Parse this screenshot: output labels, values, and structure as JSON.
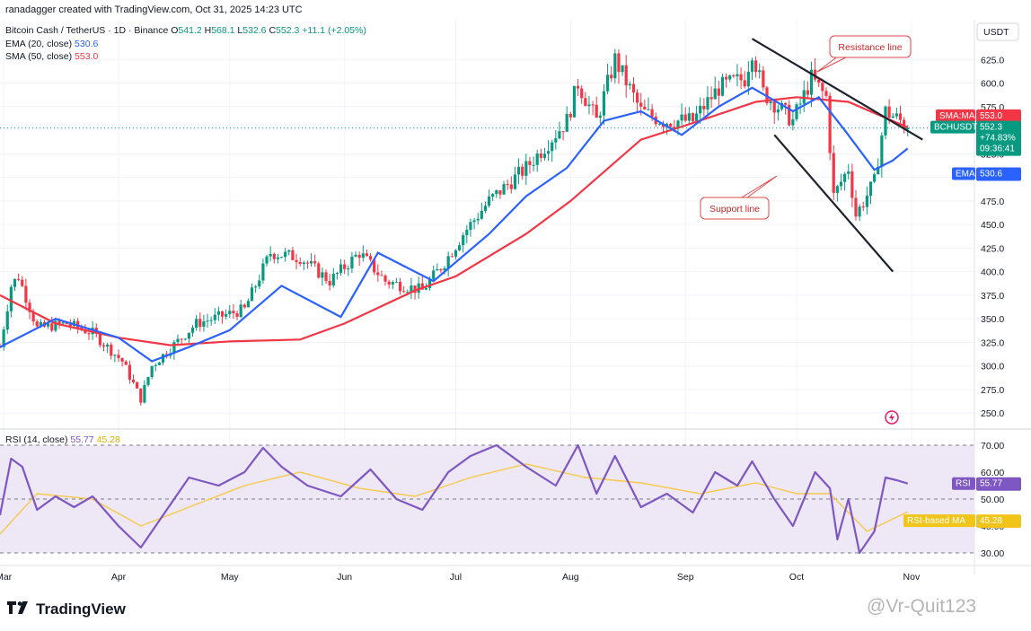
{
  "header": {
    "creator": "ranadagger created with TradingView.com, Oct 31, 2025 14:23 UTC",
    "symbol": "Bitcoin Cash / TetherUS · 1D · Binance",
    "o_label": "O",
    "o_value": "541.2",
    "h_label": "H",
    "h_value": "568.1",
    "l_label": "L",
    "l_value": "532.6",
    "c_label": "C",
    "c_value": "552.3",
    "change": "+11.1 (+2.05%)",
    "ema_label": "EMA (20, close)",
    "ema_value": "530.6",
    "sma_label": "SMA (50, close)",
    "sma_value": "553.0"
  },
  "rsi_legend": {
    "label": "RSI (14, close)",
    "rsi": "55.77",
    "ma": "45.28"
  },
  "price_axis": {
    "currency": "USDT",
    "ticks": [
      "625.0",
      "600.0",
      "575.0",
      "550.0",
      "525.0",
      "500.0",
      "475.0",
      "450.0",
      "425.0",
      "400.0",
      "375.0",
      "350.0",
      "325.0",
      "300.0",
      "275.0",
      "250.0"
    ]
  },
  "rsi_axis": {
    "ticks": [
      "70.00",
      "60.00",
      "50.00",
      "40.00",
      "30.00"
    ]
  },
  "time_axis": {
    "labels": [
      "Mar",
      "Apr",
      "May",
      "Jun",
      "Jul",
      "Aug",
      "Sep",
      "Oct",
      "Nov"
    ]
  },
  "tags": {
    "sma": {
      "label": "SMA:MA",
      "value": "553.0"
    },
    "symbol": {
      "label": "BCHUSDT",
      "price": "552.3",
      "change": "+74.83%",
      "countdown": "09:36:41"
    },
    "ema": {
      "label": "EMA",
      "value": "530.6"
    },
    "rsi": {
      "label": "RSI",
      "value": "55.77"
    },
    "rsi_ma": {
      "label": "RSI-based MA",
      "value": "45.28"
    }
  },
  "annotations": {
    "resistance": "Resistance line",
    "support": "Support line"
  },
  "footer": {
    "logo": "TradingView",
    "watermark": "@Vr-Quit123"
  },
  "colors": {
    "up": "#089981",
    "down": "#f23645",
    "ema": "#2962ff",
    "sma": "#f23645",
    "rsi": "#7e57c2",
    "rsi_ma": "#f7c948",
    "rsi_band": "#ede7f6"
  },
  "chart_data": {
    "type": "candlestick",
    "title": "Bitcoin Cash / TetherUS · 1D · Binance",
    "ylim": [
      235,
      650
    ],
    "rsi_ylim": [
      28,
      72
    ],
    "x_range": [
      "2025-02-28",
      "2025-11-18"
    ],
    "month_starts": {
      "Mar": "2025-03-01",
      "Apr": "2025-04-01",
      "May": "2025-05-01",
      "Jun": "2025-06-01",
      "Jul": "2025-07-01",
      "Aug": "2025-08-01",
      "Sep": "2025-09-01",
      "Oct": "2025-10-01",
      "Nov": "2025-11-01"
    },
    "close_anchors": [
      [
        "2025-02-28",
        320
      ],
      [
        "2025-03-03",
        385
      ],
      [
        "2025-03-05",
        395
      ],
      [
        "2025-03-10",
        340
      ],
      [
        "2025-03-18",
        345
      ],
      [
        "2025-03-25",
        335
      ],
      [
        "2025-04-02",
        305
      ],
      [
        "2025-04-07",
        265
      ],
      [
        "2025-04-10",
        300
      ],
      [
        "2025-04-22",
        345
      ],
      [
        "2025-05-05",
        360
      ],
      [
        "2025-05-12",
        420
      ],
      [
        "2025-05-20",
        415
      ],
      [
        "2025-05-28",
        390
      ],
      [
        "2025-06-05",
        420
      ],
      [
        "2025-06-12",
        390
      ],
      [
        "2025-06-22",
        380
      ],
      [
        "2025-06-28",
        410
      ],
      [
        "2025-07-03",
        440
      ],
      [
        "2025-07-10",
        475
      ],
      [
        "2025-07-20",
        510
      ],
      [
        "2025-07-31",
        560
      ],
      [
        "2025-08-03",
        600
      ],
      [
        "2025-08-08",
        560
      ],
      [
        "2025-08-13",
        625
      ],
      [
        "2025-08-20",
        570
      ],
      [
        "2025-08-26",
        560
      ],
      [
        "2025-09-03",
        560
      ],
      [
        "2025-09-10",
        595
      ],
      [
        "2025-09-17",
        605
      ],
      [
        "2025-09-19",
        635
      ],
      [
        "2025-09-22",
        590
      ],
      [
        "2025-09-30",
        560
      ],
      [
        "2025-10-05",
        605
      ],
      [
        "2025-10-09",
        585
      ],
      [
        "2025-10-11",
        480
      ],
      [
        "2025-10-15",
        510
      ],
      [
        "2025-10-17",
        460
      ],
      [
        "2025-10-22",
        495
      ],
      [
        "2025-10-25",
        570
      ],
      [
        "2025-10-29",
        560
      ],
      [
        "2025-10-31",
        552.3
      ]
    ],
    "ema20": [
      [
        "2025-02-28",
        320
      ],
      [
        "2025-03-15",
        350
      ],
      [
        "2025-04-01",
        330
      ],
      [
        "2025-04-10",
        305
      ],
      [
        "2025-04-20",
        320
      ],
      [
        "2025-05-01",
        338
      ],
      [
        "2025-05-15",
        385
      ],
      [
        "2025-05-31",
        352
      ],
      [
        "2025-06-10",
        420
      ],
      [
        "2025-06-25",
        390
      ],
      [
        "2025-07-10",
        440
      ],
      [
        "2025-07-20",
        480
      ],
      [
        "2025-07-31",
        510
      ],
      [
        "2025-08-10",
        560
      ],
      [
        "2025-08-20",
        570
      ],
      [
        "2025-08-31",
        545
      ],
      [
        "2025-09-10",
        575
      ],
      [
        "2025-09-19",
        595
      ],
      [
        "2025-09-30",
        570
      ],
      [
        "2025-10-07",
        585
      ],
      [
        "2025-10-14",
        550
      ],
      [
        "2025-10-22",
        508
      ],
      [
        "2025-10-27",
        518
      ],
      [
        "2025-10-31",
        530.6
      ]
    ],
    "sma50": [
      [
        "2025-02-28",
        375
      ],
      [
        "2025-03-15",
        345
      ],
      [
        "2025-04-01",
        330
      ],
      [
        "2025-04-15",
        322
      ],
      [
        "2025-05-01",
        326
      ],
      [
        "2025-05-20",
        328
      ],
      [
        "2025-06-01",
        345
      ],
      [
        "2025-06-20",
        380
      ],
      [
        "2025-07-01",
        395
      ],
      [
        "2025-07-20",
        440
      ],
      [
        "2025-08-01",
        475
      ],
      [
        "2025-08-20",
        540
      ],
      [
        "2025-09-01",
        555
      ],
      [
        "2025-09-20",
        580
      ],
      [
        "2025-10-01",
        585
      ],
      [
        "2025-10-15",
        580
      ],
      [
        "2025-10-31",
        553.0
      ]
    ],
    "resistance_line": [
      [
        "2025-09-19",
        647
      ],
      [
        "2025-11-04",
        540
      ]
    ],
    "support_line": [
      [
        "2025-09-25",
        545
      ],
      [
        "2025-10-27",
        400
      ]
    ],
    "rsi": [
      [
        "2025-02-28",
        44
      ],
      [
        "2025-03-03",
        65
      ],
      [
        "2025-03-06",
        62
      ],
      [
        "2025-03-10",
        46
      ],
      [
        "2025-03-15",
        51
      ],
      [
        "2025-03-20",
        47
      ],
      [
        "2025-03-25",
        51
      ],
      [
        "2025-04-01",
        40
      ],
      [
        "2025-04-07",
        32
      ],
      [
        "2025-04-12",
        42
      ],
      [
        "2025-04-20",
        58
      ],
      [
        "2025-04-28",
        55
      ],
      [
        "2025-05-05",
        60
      ],
      [
        "2025-05-10",
        69
      ],
      [
        "2025-05-15",
        62
      ],
      [
        "2025-05-22",
        55
      ],
      [
        "2025-05-31",
        51
      ],
      [
        "2025-06-08",
        61
      ],
      [
        "2025-06-15",
        50
      ],
      [
        "2025-06-22",
        46
      ],
      [
        "2025-06-29",
        60
      ],
      [
        "2025-07-05",
        66
      ],
      [
        "2025-07-12",
        70
      ],
      [
        "2025-07-20",
        62
      ],
      [
        "2025-07-28",
        55
      ],
      [
        "2025-08-03",
        70
      ],
      [
        "2025-08-08",
        52
      ],
      [
        "2025-08-13",
        66
      ],
      [
        "2025-08-20",
        47
      ],
      [
        "2025-08-27",
        52
      ],
      [
        "2025-09-03",
        45
      ],
      [
        "2025-09-09",
        60
      ],
      [
        "2025-09-15",
        55
      ],
      [
        "2025-09-19",
        64
      ],
      [
        "2025-09-25",
        50
      ],
      [
        "2025-09-30",
        40
      ],
      [
        "2025-10-06",
        60
      ],
      [
        "2025-10-10",
        54
      ],
      [
        "2025-10-12",
        35
      ],
      [
        "2025-10-15",
        50
      ],
      [
        "2025-10-18",
        30
      ],
      [
        "2025-10-22",
        38
      ],
      [
        "2025-10-25",
        58
      ],
      [
        "2025-10-28",
        57
      ],
      [
        "2025-10-31",
        55.77
      ]
    ],
    "rsi_ma": [
      [
        "2025-02-28",
        37
      ],
      [
        "2025-03-10",
        52
      ],
      [
        "2025-03-25",
        50
      ],
      [
        "2025-04-07",
        40
      ],
      [
        "2025-04-20",
        47
      ],
      [
        "2025-05-05",
        55
      ],
      [
        "2025-05-20",
        60
      ],
      [
        "2025-06-05",
        54
      ],
      [
        "2025-06-20",
        51
      ],
      [
        "2025-07-05",
        58
      ],
      [
        "2025-07-20",
        63
      ],
      [
        "2025-08-05",
        58
      ],
      [
        "2025-08-20",
        56
      ],
      [
        "2025-09-05",
        52
      ],
      [
        "2025-09-20",
        56
      ],
      [
        "2025-10-01",
        52
      ],
      [
        "2025-10-10",
        52
      ],
      [
        "2025-10-20",
        38
      ],
      [
        "2025-10-31",
        45.28
      ]
    ],
    "rsi_levels": [
      70,
      50,
      30
    ]
  }
}
